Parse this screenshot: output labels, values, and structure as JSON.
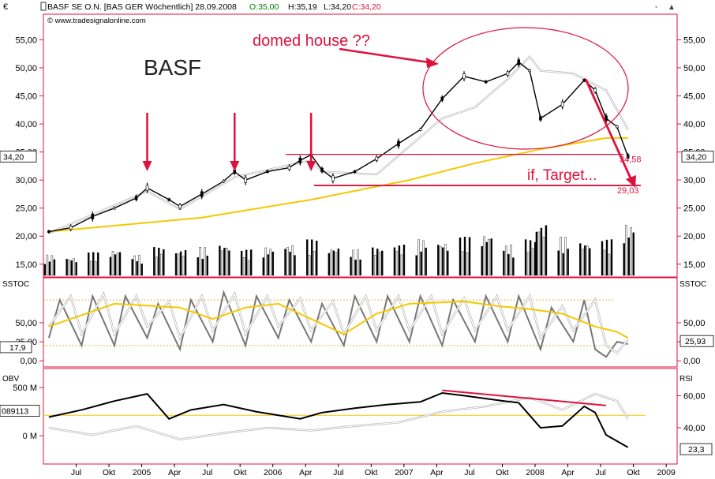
{
  "header": {
    "currency": "€",
    "title": "BASF SE O.N. [BAS GER  Wöchentlich] 28.09.2008",
    "open": "O:35,00",
    "high": "H:35,19",
    "low": "L:34,20",
    "close": "C:34,20",
    "copyright": "© www.tradesignalonline.com"
  },
  "chart_data": [
    {
      "type": "candlestick",
      "instrument": "BASF",
      "interval": "weekly",
      "ylim": [
        13,
        59
      ],
      "y_ticks": [
        "15,00",
        "20,00",
        "25,00",
        "30,00",
        "35,00",
        "40,00",
        "45,00",
        "50,00",
        "55,00"
      ],
      "last_price_label": "34,20",
      "close_series": [
        {
          "x": "2004-04",
          "y": 20.8
        },
        {
          "x": "2004-06",
          "y": 21.5
        },
        {
          "x": "2004-08",
          "y": 23.5
        },
        {
          "x": "2004-10",
          "y": 25.0
        },
        {
          "x": "2004-12",
          "y": 26.8
        },
        {
          "x": "2005-01",
          "y": 28.6
        },
        {
          "x": "2005-03",
          "y": 26.5
        },
        {
          "x": "2005-04",
          "y": 25.3
        },
        {
          "x": "2005-06",
          "y": 27.5
        },
        {
          "x": "2005-08",
          "y": 29.8
        },
        {
          "x": "2005-09",
          "y": 31.5
        },
        {
          "x": "2005-10",
          "y": 30.0
        },
        {
          "x": "2005-12",
          "y": 31.5
        },
        {
          "x": "2006-02",
          "y": 32.2
        },
        {
          "x": "2006-03",
          "y": 33.5
        },
        {
          "x": "2006-04",
          "y": 34.5
        },
        {
          "x": "2006-05",
          "y": 31.8
        },
        {
          "x": "2006-06",
          "y": 30.3
        },
        {
          "x": "2006-08",
          "y": 31.5
        },
        {
          "x": "2006-10",
          "y": 33.8
        },
        {
          "x": "2006-12",
          "y": 36.5
        },
        {
          "x": "2007-02",
          "y": 39.0
        },
        {
          "x": "2007-04",
          "y": 44.5
        },
        {
          "x": "2007-06",
          "y": 48.5
        },
        {
          "x": "2007-08",
          "y": 47.5
        },
        {
          "x": "2007-10",
          "y": 49.0
        },
        {
          "x": "2007-11",
          "y": 51.0
        },
        {
          "x": "2007-12",
          "y": 49.5
        },
        {
          "x": "2008-01",
          "y": 41.0
        },
        {
          "x": "2008-03",
          "y": 43.5
        },
        {
          "x": "2008-05",
          "y": 47.8
        },
        {
          "x": "2008-06",
          "y": 46.0
        },
        {
          "x": "2008-07",
          "y": 41.0
        },
        {
          "x": "2008-08",
          "y": 39.5
        },
        {
          "x": "2008-09",
          "y": 34.2
        }
      ],
      "relative_line": [
        {
          "x": "2004-04",
          "y": 20.5
        },
        {
          "x": "2005-01",
          "y": 28.0
        },
        {
          "x": "2005-04",
          "y": 24.8
        },
        {
          "x": "2005-09",
          "y": 30.5
        },
        {
          "x": "2006-04",
          "y": 33.5
        },
        {
          "x": "2006-05",
          "y": 31.5
        },
        {
          "x": "2006-10",
          "y": 31.0
        },
        {
          "x": "2007-01",
          "y": 36.0
        },
        {
          "x": "2007-04",
          "y": 41.0
        },
        {
          "x": "2007-07",
          "y": 43.0
        },
        {
          "x": "2007-10",
          "y": 48.0
        },
        {
          "x": "2007-12",
          "y": 52.0
        },
        {
          "x": "2008-01",
          "y": 49.5
        },
        {
          "x": "2008-04",
          "y": 49.0
        },
        {
          "x": "2008-07",
          "y": 46.0
        },
        {
          "x": "2008-09",
          "y": 39.0
        }
      ],
      "moving_average": [
        {
          "x": "2004-04",
          "y": 20.8
        },
        {
          "x": "2005-06",
          "y": 23.3
        },
        {
          "x": "2006-04",
          "y": 26.5
        },
        {
          "x": "2007-01",
          "y": 30.0
        },
        {
          "x": "2007-07",
          "y": 33.0
        },
        {
          "x": "2008-01",
          "y": 35.5
        },
        {
          "x": "2008-07",
          "y": 37.5
        },
        {
          "x": "2008-09",
          "y": 37.5
        }
      ],
      "volume_bars": [
        {
          "x": "2004-04",
          "y": 0.4
        },
        {
          "x": "2004-06",
          "y": 0.35
        },
        {
          "x": "2004-08",
          "y": 0.45
        },
        {
          "x": "2004-10",
          "y": 0.5
        },
        {
          "x": "2004-12",
          "y": 0.4
        },
        {
          "x": "2005-02",
          "y": 0.55
        },
        {
          "x": "2005-04",
          "y": 0.5
        },
        {
          "x": "2005-06",
          "y": 0.55
        },
        {
          "x": "2005-08",
          "y": 0.6
        },
        {
          "x": "2005-10",
          "y": 0.5
        },
        {
          "x": "2005-12",
          "y": 0.55
        },
        {
          "x": "2006-02",
          "y": 0.6
        },
        {
          "x": "2006-04",
          "y": 0.7
        },
        {
          "x": "2006-06",
          "y": 0.55
        },
        {
          "x": "2006-08",
          "y": 0.5
        },
        {
          "x": "2006-10",
          "y": 0.55
        },
        {
          "x": "2006-12",
          "y": 0.6
        },
        {
          "x": "2007-02",
          "y": 0.7
        },
        {
          "x": "2007-04",
          "y": 0.65
        },
        {
          "x": "2007-06",
          "y": 0.75
        },
        {
          "x": "2007-08",
          "y": 0.8
        },
        {
          "x": "2007-10",
          "y": 0.6
        },
        {
          "x": "2007-12",
          "y": 0.7
        },
        {
          "x": "2008-01",
          "y": 1.0
        },
        {
          "x": "2008-03",
          "y": 0.75
        },
        {
          "x": "2008-05",
          "y": 0.65
        },
        {
          "x": "2008-07",
          "y": 0.7
        },
        {
          "x": "2008-09",
          "y": 1.0
        }
      ],
      "annotations": [
        {
          "text": "BASF",
          "color": "#222222"
        },
        {
          "text": "domed house ??",
          "color": "#e0103c"
        },
        {
          "text": "if, Target...",
          "color": "#e0103c"
        },
        {
          "text": "34,58",
          "color": "#e0103c",
          "level": 34.58
        },
        {
          "text": "29,03",
          "color": "#e0103c",
          "level": 29.03
        }
      ],
      "down_arrows_at": [
        "2005-01",
        "2005-09",
        "2006-04"
      ],
      "colors": {
        "price": "#000000",
        "ma": "#f5c800",
        "relative": "#ffffff",
        "annotation": "#e0103c"
      }
    },
    {
      "type": "line",
      "indicator": "SSTOC",
      "ylim": [
        -5,
        105
      ],
      "y_ticks": [
        "0,00",
        "25,00",
        "50,00"
      ],
      "left_value_label": "17,9",
      "right_value_label": "25,93",
      "reference_levels": [
        80,
        20
      ],
      "series": [
        {
          "name": "",
          "color": "#777777",
          "values": [
            {
              "x": "2004-04",
              "y": 30
            },
            {
              "x": "2004-05",
              "y": 80
            },
            {
              "x": "2004-07",
              "y": 20
            },
            {
              "x": "2004-08",
              "y": 85
            },
            {
              "x": "2004-10",
              "y": 20
            },
            {
              "x": "2004-11",
              "y": 85
            },
            {
              "x": "2005-01",
              "y": 30
            },
            {
              "x": "2005-02",
              "y": 75
            },
            {
              "x": "2005-04",
              "y": 15
            },
            {
              "x": "2005-05",
              "y": 80
            },
            {
              "x": "2005-07",
              "y": 25
            },
            {
              "x": "2005-08",
              "y": 90
            },
            {
              "x": "2005-10",
              "y": 20
            },
            {
              "x": "2005-11",
              "y": 85
            },
            {
              "x": "2006-01",
              "y": 30
            },
            {
              "x": "2006-02",
              "y": 80
            },
            {
              "x": "2006-04",
              "y": 25
            },
            {
              "x": "2006-05",
              "y": 75
            },
            {
              "x": "2006-07",
              "y": 20
            },
            {
              "x": "2006-08",
              "y": 85
            },
            {
              "x": "2006-10",
              "y": 25
            },
            {
              "x": "2006-11",
              "y": 85
            },
            {
              "x": "2007-01",
              "y": 25
            },
            {
              "x": "2007-02",
              "y": 85
            },
            {
              "x": "2007-04",
              "y": 20
            },
            {
              "x": "2007-05",
              "y": 80
            },
            {
              "x": "2007-07",
              "y": 25
            },
            {
              "x": "2007-08",
              "y": 85
            },
            {
              "x": "2007-10",
              "y": 25
            },
            {
              "x": "2007-11",
              "y": 85
            },
            {
              "x": "2008-01",
              "y": 15
            },
            {
              "x": "2008-02",
              "y": 70
            },
            {
              "x": "2008-04",
              "y": 25
            },
            {
              "x": "2008-05",
              "y": 80
            },
            {
              "x": "2008-06",
              "y": 15
            },
            {
              "x": "2008-07",
              "y": 5
            },
            {
              "x": "2008-08",
              "y": 25
            },
            {
              "x": "2008-09",
              "y": 22
            }
          ]
        },
        {
          "name": "",
          "color": "#ffffff",
          "values": [
            {
              "x": "2004-04",
              "y": 45
            },
            {
              "x": "2004-06",
              "y": 85
            },
            {
              "x": "2004-07",
              "y": 35
            },
            {
              "x": "2004-09",
              "y": 88
            },
            {
              "x": "2004-10",
              "y": 35
            },
            {
              "x": "2004-12",
              "y": 85
            },
            {
              "x": "2005-01",
              "y": 45
            },
            {
              "x": "2005-03",
              "y": 78
            },
            {
              "x": "2005-04",
              "y": 30
            },
            {
              "x": "2005-06",
              "y": 85
            },
            {
              "x": "2005-07",
              "y": 40
            },
            {
              "x": "2005-09",
              "y": 88
            },
            {
              "x": "2005-10",
              "y": 35
            },
            {
              "x": "2005-12",
              "y": 85
            },
            {
              "x": "2006-01",
              "y": 45
            },
            {
              "x": "2006-03",
              "y": 82
            },
            {
              "x": "2006-04",
              "y": 40
            },
            {
              "x": "2006-06",
              "y": 78
            },
            {
              "x": "2006-07",
              "y": 35
            },
            {
              "x": "2006-09",
              "y": 85
            },
            {
              "x": "2006-10",
              "y": 40
            },
            {
              "x": "2006-12",
              "y": 85
            },
            {
              "x": "2007-01",
              "y": 40
            },
            {
              "x": "2007-03",
              "y": 85
            },
            {
              "x": "2007-04",
              "y": 35
            },
            {
              "x": "2007-06",
              "y": 82
            },
            {
              "x": "2007-07",
              "y": 40
            },
            {
              "x": "2007-09",
              "y": 85
            },
            {
              "x": "2007-10",
              "y": 40
            },
            {
              "x": "2007-12",
              "y": 85
            },
            {
              "x": "2008-01",
              "y": 30
            },
            {
              "x": "2008-03",
              "y": 72
            },
            {
              "x": "2008-04",
              "y": 40
            },
            {
              "x": "2008-06",
              "y": 80
            },
            {
              "x": "2008-07",
              "y": 20
            },
            {
              "x": "2008-08",
              "y": 10
            },
            {
              "x": "2008-09",
              "y": 28
            }
          ]
        },
        {
          "name": "",
          "color": "#f5c800",
          "values": [
            {
              "x": "2004-04",
              "y": 45
            },
            {
              "x": "2004-10",
              "y": 75
            },
            {
              "x": "2005-04",
              "y": 70
            },
            {
              "x": "2005-07",
              "y": 55
            },
            {
              "x": "2005-10",
              "y": 70
            },
            {
              "x": "2006-01",
              "y": 75
            },
            {
              "x": "2006-04",
              "y": 55
            },
            {
              "x": "2006-07",
              "y": 35
            },
            {
              "x": "2006-10",
              "y": 62
            },
            {
              "x": "2007-01",
              "y": 75
            },
            {
              "x": "2007-06",
              "y": 78
            },
            {
              "x": "2007-09",
              "y": 72
            },
            {
              "x": "2007-12",
              "y": 68
            },
            {
              "x": "2008-03",
              "y": 62
            },
            {
              "x": "2008-06",
              "y": 45
            },
            {
              "x": "2008-08",
              "y": 38
            },
            {
              "x": "2008-09",
              "y": 30
            }
          ]
        }
      ]
    },
    {
      "type": "line",
      "indicator": "OBV / RSI",
      "left_axis_label": "OBV",
      "right_axis_label": "RSI",
      "left_ticks": [
        "0 M",
        "500 M"
      ],
      "right_ticks": [
        "40,00",
        "60,00"
      ],
      "left_value_label": "089113",
      "right_value_label": "23,3",
      "series": [
        {
          "name": "OBV",
          "color": "#000000",
          "values": [
            {
              "x": "2004-04",
              "y": 50
            },
            {
              "x": "2004-07",
              "y": 58
            },
            {
              "x": "2004-10",
              "y": 68
            },
            {
              "x": "2005-01",
              "y": 76
            },
            {
              "x": "2005-03",
              "y": 48
            },
            {
              "x": "2005-05",
              "y": 58
            },
            {
              "x": "2005-08",
              "y": 64
            },
            {
              "x": "2005-11",
              "y": 56
            },
            {
              "x": "2006-01",
              "y": 52
            },
            {
              "x": "2006-03",
              "y": 48
            },
            {
              "x": "2006-05",
              "y": 55
            },
            {
              "x": "2006-08",
              "y": 60
            },
            {
              "x": "2006-11",
              "y": 64
            },
            {
              "x": "2007-02",
              "y": 67
            },
            {
              "x": "2007-04",
              "y": 77
            },
            {
              "x": "2007-06",
              "y": 74
            },
            {
              "x": "2007-09",
              "y": 69
            },
            {
              "x": "2007-11",
              "y": 66
            },
            {
              "x": "2008-01",
              "y": 38
            },
            {
              "x": "2008-03",
              "y": 40
            },
            {
              "x": "2008-05",
              "y": 62
            },
            {
              "x": "2008-06",
              "y": 55
            },
            {
              "x": "2008-07",
              "y": 30
            },
            {
              "x": "2008-09",
              "y": 16
            }
          ]
        },
        {
          "name": "RSI",
          "color": "#ffffff",
          "values": [
            {
              "x": "2004-04",
              "y": 38
            },
            {
              "x": "2004-08",
              "y": 30
            },
            {
              "x": "2004-12",
              "y": 40
            },
            {
              "x": "2005-04",
              "y": 25
            },
            {
              "x": "2005-08",
              "y": 32
            },
            {
              "x": "2005-12",
              "y": 38
            },
            {
              "x": "2006-04",
              "y": 35
            },
            {
              "x": "2006-08",
              "y": 40
            },
            {
              "x": "2006-12",
              "y": 44
            },
            {
              "x": "2007-04",
              "y": 56
            },
            {
              "x": "2007-08",
              "y": 62
            },
            {
              "x": "2007-12",
              "y": 72
            },
            {
              "x": "2008-03",
              "y": 58
            },
            {
              "x": "2008-06",
              "y": 76
            },
            {
              "x": "2008-08",
              "y": 68
            },
            {
              "x": "2008-09",
              "y": 48
            }
          ]
        }
      ],
      "reference_level_color": "#f5c800",
      "divergence_line_color": "#e0103c"
    }
  ],
  "x_axis": {
    "labels": [
      "Jul",
      "Okt",
      "2005",
      "Apr",
      "Jul",
      "Okt",
      "2006",
      "Apr",
      "Jul",
      "Okt",
      "2007",
      "Apr",
      "Jul",
      "Okt",
      "2008",
      "Apr",
      "Jul",
      "Okt",
      "2009"
    ]
  }
}
